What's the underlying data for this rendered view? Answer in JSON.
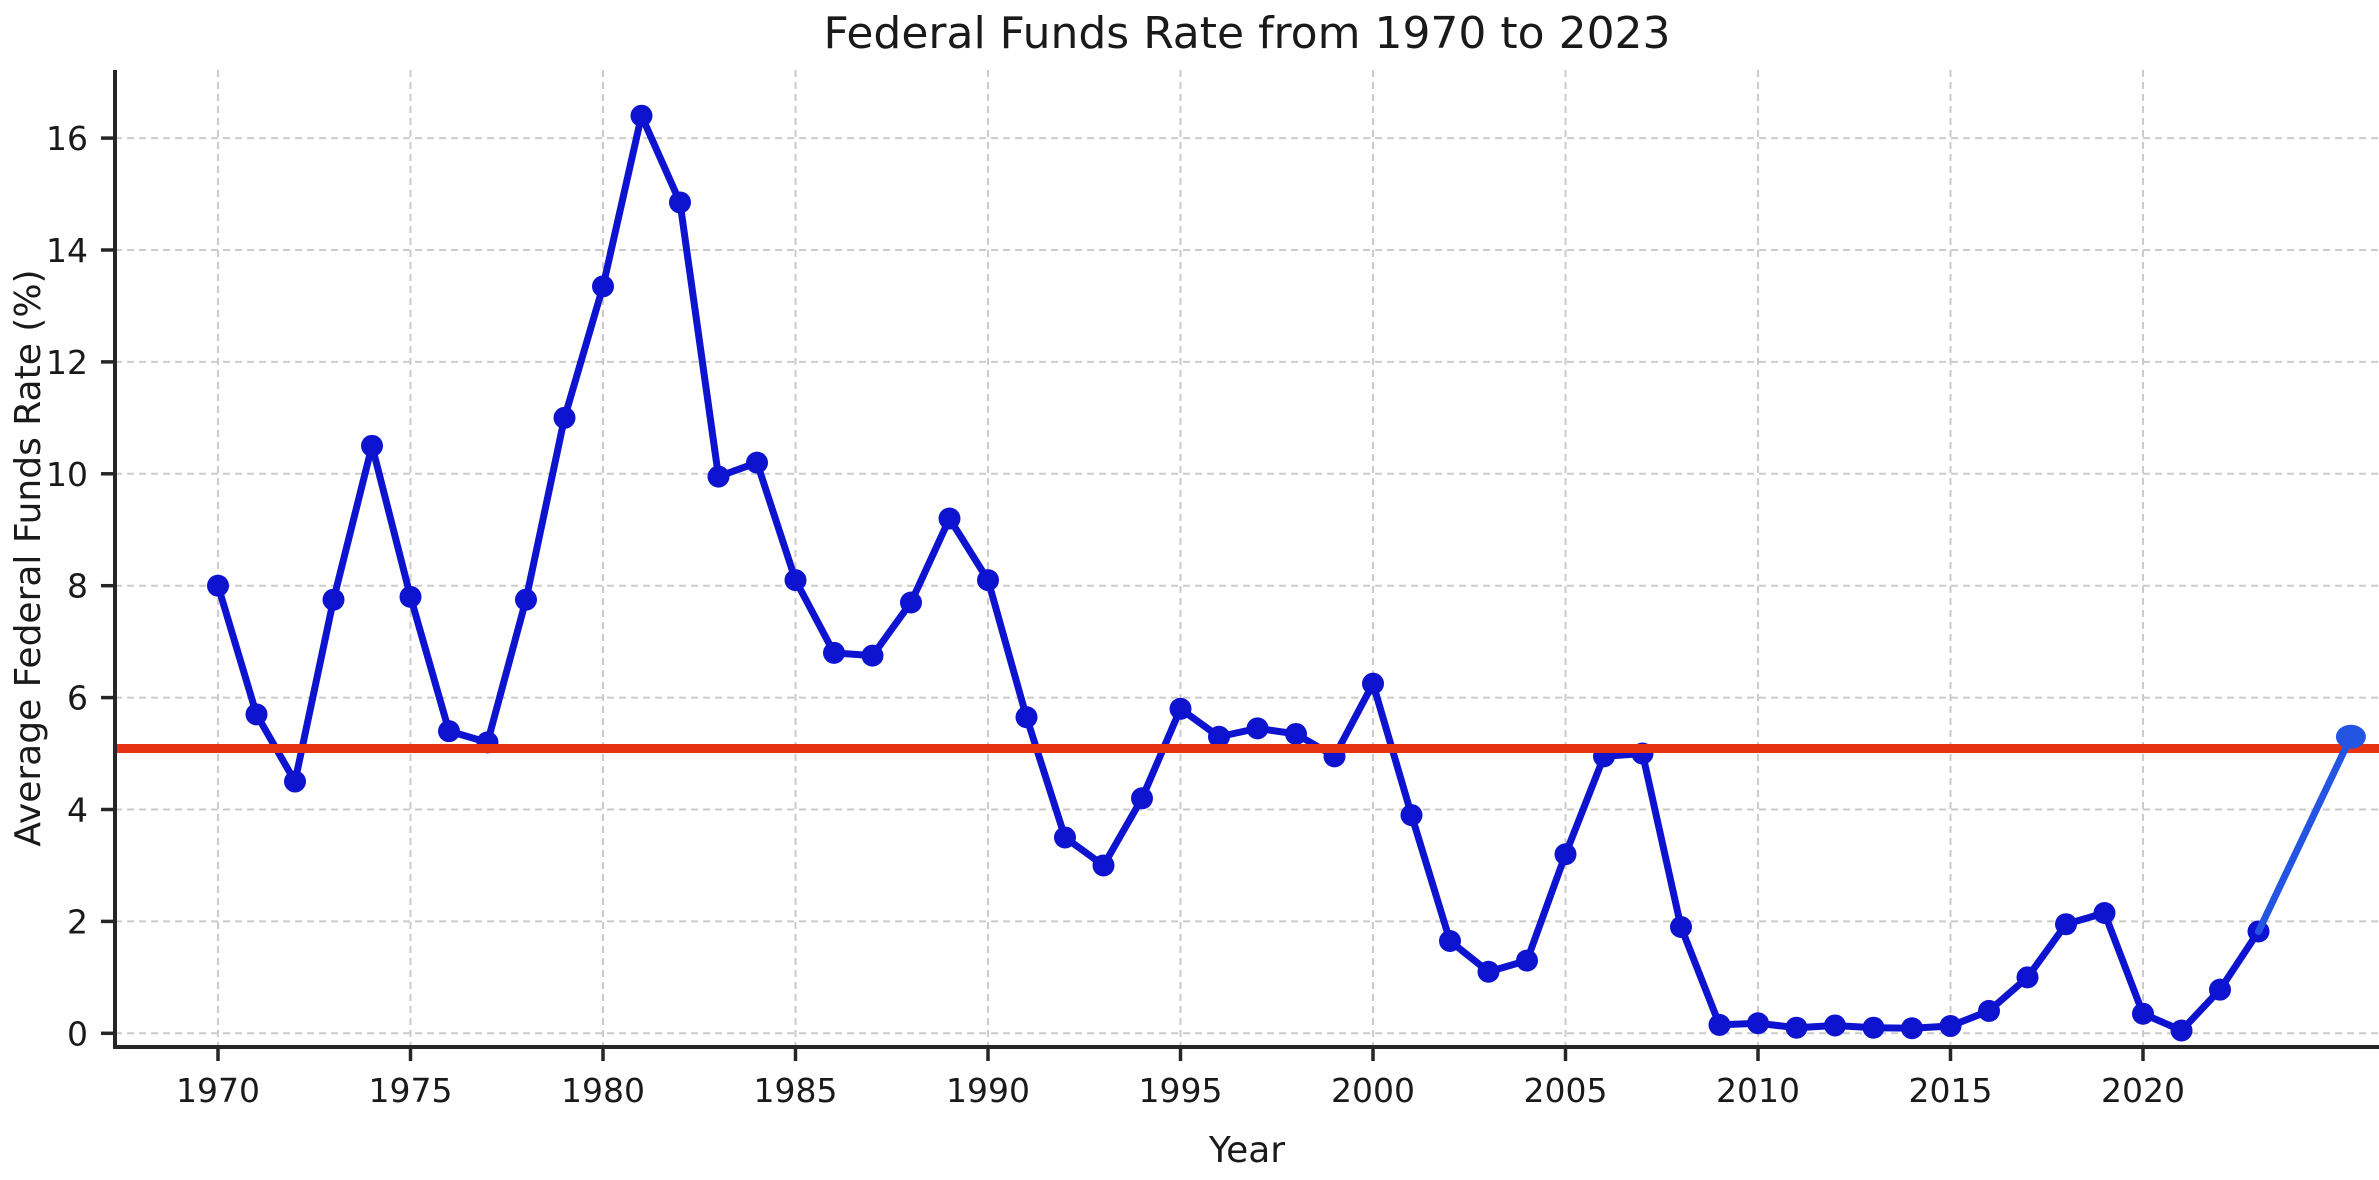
{
  "chart_data": {
    "type": "line",
    "title": "Federal Funds Rate from 1970 to 2023",
    "xlabel": "Year",
    "ylabel": "Average Federal Funds Rate (%)",
    "grid": true,
    "grid_style": "dashed",
    "legend": false,
    "x_ticks": [
      1970,
      1975,
      1980,
      1985,
      1990,
      1995,
      2000,
      2005,
      2010,
      2015,
      2020
    ],
    "y_ticks": [
      0,
      2,
      4,
      6,
      8,
      10,
      12,
      14,
      16
    ],
    "xlim": [
      1967.3,
      2026.1
    ],
    "ylim": [
      -0.25,
      17.2
    ],
    "x": [
      1970,
      1971,
      1972,
      1973,
      1974,
      1975,
      1976,
      1977,
      1978,
      1979,
      1980,
      1981,
      1982,
      1983,
      1984,
      1985,
      1986,
      1987,
      1988,
      1989,
      1990,
      1991,
      1992,
      1993,
      1994,
      1995,
      1996,
      1997,
      1998,
      1999,
      2000,
      2001,
      2002,
      2003,
      2004,
      2005,
      2006,
      2007,
      2008,
      2009,
      2010,
      2011,
      2012,
      2013,
      2014,
      2015,
      2016,
      2017,
      2018,
      2019,
      2020,
      2021,
      2022,
      2023
    ],
    "series": [
      {
        "name": "average-federal-funds-rate",
        "color": "#0d13cf",
        "marker": "circle",
        "values": [
          8.0,
          5.7,
          4.5,
          7.75,
          10.5,
          7.8,
          5.4,
          5.2,
          7.75,
          11.0,
          13.35,
          16.4,
          14.85,
          9.95,
          10.2,
          8.1,
          6.8,
          6.75,
          7.7,
          9.2,
          8.1,
          5.65,
          3.5,
          3.0,
          4.2,
          5.8,
          5.3,
          5.45,
          5.35,
          4.95,
          6.25,
          3.9,
          1.65,
          1.1,
          1.3,
          3.2,
          4.95,
          5.0,
          1.9,
          0.15,
          0.18,
          0.1,
          0.14,
          0.1,
          0.09,
          0.13,
          0.4,
          1.0,
          1.95,
          2.15,
          0.35,
          0.05,
          0.78,
          1.82
        ]
      }
    ],
    "reference_line": {
      "value": 5.09,
      "color": "#e73212"
    },
    "latest_point": {
      "value": 5.3,
      "x_position_year": 2025.4,
      "color": "#2454e2",
      "note": "large highlighted end marker connected from 2023 by brighter blue segment"
    },
    "colors": {
      "grid": "#cbcbcb",
      "spine": "#262626",
      "text": "#1a1a1a",
      "background": "#ffffff"
    }
  }
}
